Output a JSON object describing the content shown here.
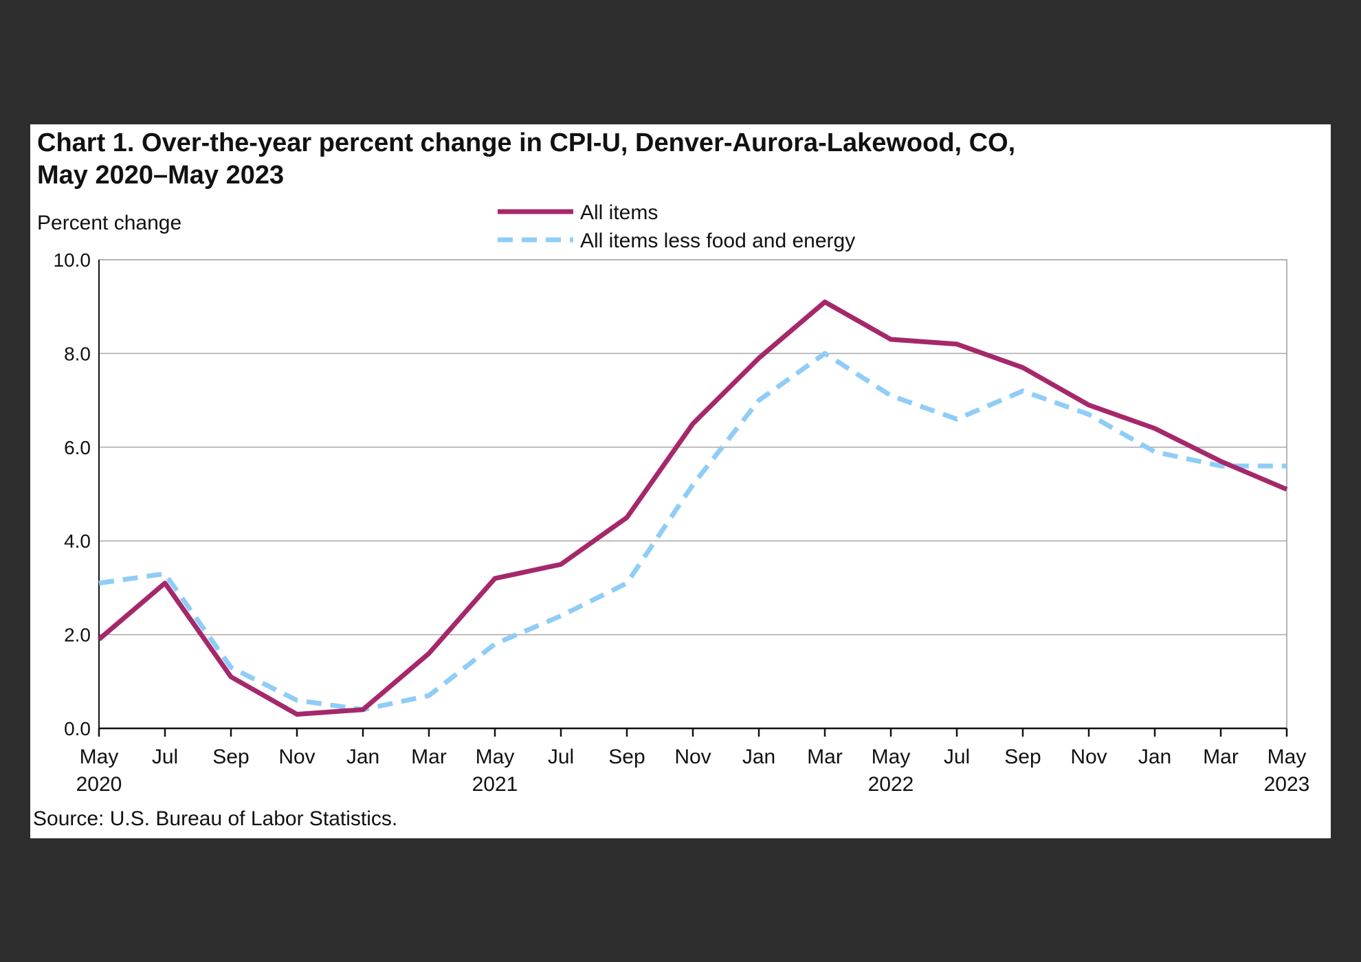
{
  "chart_data": {
    "type": "line",
    "title": "Chart 1. Over-the-year percent change in CPI-U, Denver-Aurora-Lakewood, CO,\nMay 2020–May 2023",
    "ylabel": "Percent change",
    "ylim": [
      0,
      10
    ],
    "yticks": [
      "0.0",
      "2.0",
      "4.0",
      "6.0",
      "8.0",
      "10.0"
    ],
    "grid": true,
    "legend_position": "top-center",
    "x_ticks": [
      {
        "label": "May",
        "year": "2020"
      },
      {
        "label": "Jul",
        "year": ""
      },
      {
        "label": "Sep",
        "year": ""
      },
      {
        "label": "Nov",
        "year": ""
      },
      {
        "label": "Jan",
        "year": ""
      },
      {
        "label": "Mar",
        "year": ""
      },
      {
        "label": "May",
        "year": "2021"
      },
      {
        "label": "Jul",
        "year": ""
      },
      {
        "label": "Sep",
        "year": ""
      },
      {
        "label": "Nov",
        "year": ""
      },
      {
        "label": "Jan",
        "year": ""
      },
      {
        "label": "Mar",
        "year": ""
      },
      {
        "label": "May",
        "year": "2022"
      },
      {
        "label": "Jul",
        "year": ""
      },
      {
        "label": "Sep",
        "year": ""
      },
      {
        "label": "Nov",
        "year": ""
      },
      {
        "label": "Jan",
        "year": ""
      },
      {
        "label": "Mar",
        "year": ""
      },
      {
        "label": "May",
        "year": "2023"
      }
    ],
    "x": [
      "May 2020",
      "Jul 2020",
      "Sep 2020",
      "Nov 2020",
      "Jan 2021",
      "Mar 2021",
      "May 2021",
      "Jul 2021",
      "Sep 2021",
      "Nov 2021",
      "Jan 2022",
      "Mar 2022",
      "May 2022",
      "Jul 2022",
      "Sep 2022",
      "Nov 2022",
      "Jan 2023",
      "Mar 2023",
      "May 2023"
    ],
    "series": [
      {
        "name": "All items",
        "color": "#a5286a",
        "style": "solid",
        "values": [
          1.9,
          3.1,
          1.1,
          0.3,
          0.4,
          1.6,
          3.2,
          3.5,
          4.5,
          6.5,
          7.9,
          9.1,
          8.3,
          8.2,
          7.7,
          6.9,
          6.4,
          5.7,
          5.1
        ]
      },
      {
        "name": "All items less food and energy",
        "color": "#8fcdf8",
        "style": "dashed",
        "values": [
          3.1,
          3.3,
          1.3,
          0.6,
          0.4,
          0.7,
          1.8,
          2.4,
          3.1,
          5.2,
          7.0,
          8.0,
          7.1,
          6.6,
          7.2,
          6.7,
          5.9,
          5.6,
          5.6
        ]
      }
    ],
    "source": "Source: U.S. Bureau of Labor Statistics."
  }
}
